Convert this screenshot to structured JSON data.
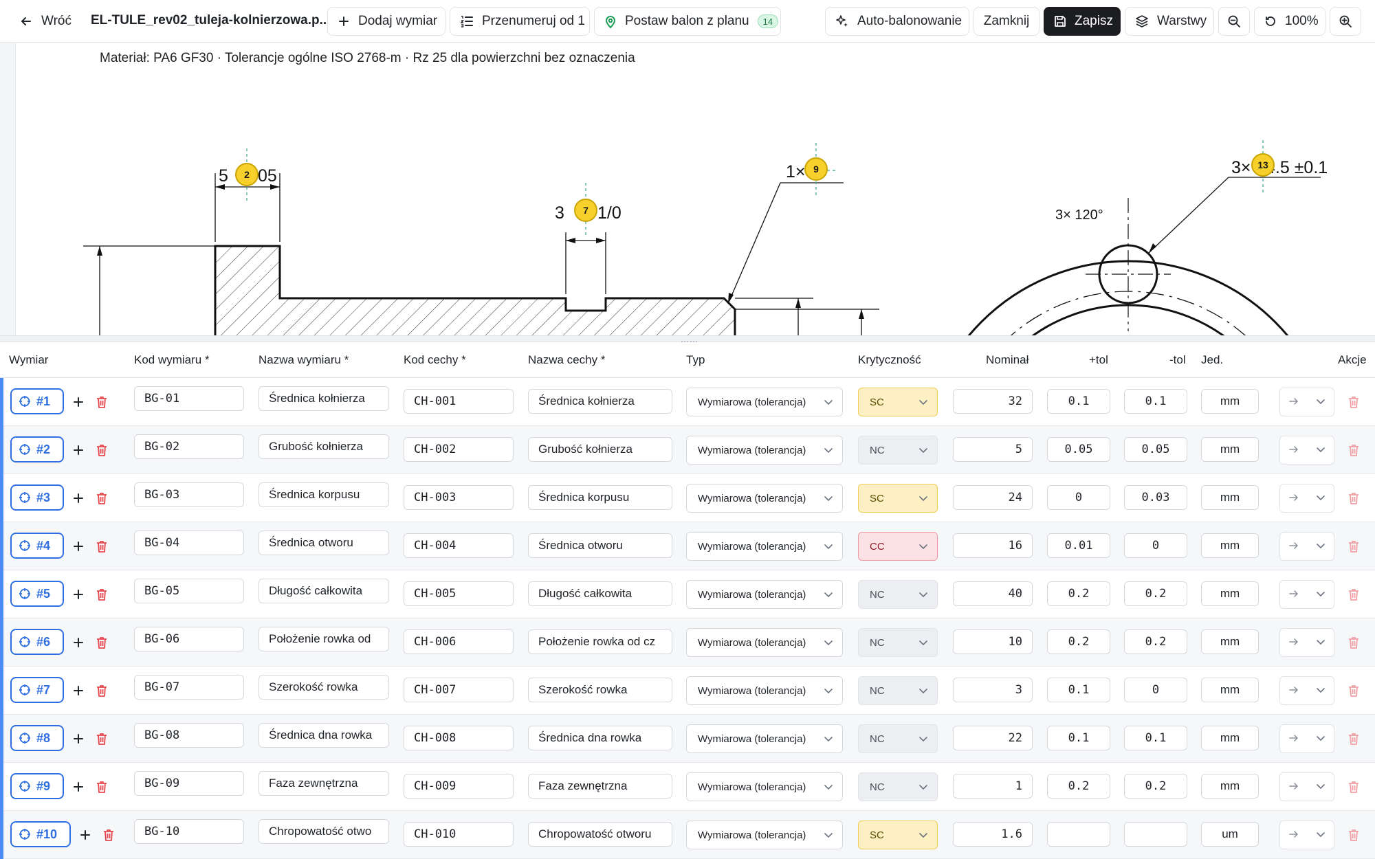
{
  "toolbar": {
    "back_label": "Wróć",
    "file_title": "EL-TULE_rev02_tuleja-kolnierzowa.p...",
    "add_dimension_label": "Dodaj wymiar",
    "renumber_label": "Przenumeruj od 1",
    "place_balloon_label": "Postaw balon z planu",
    "place_balloon_count": "14",
    "auto_balloon_label": "Auto-balonowanie",
    "close_label": "Zamknij",
    "save_label": "Zapisz",
    "layers_label": "Warstwy",
    "zoom_level": "100%"
  },
  "drawing": {
    "note": "Materiał: PA6 GF30 · Tolerancje ogólne ISO 2768-m · Rz 25 dla powierzchni bez oznaczenia",
    "dimension_texts": {
      "d2_left": "5",
      "d2_right": "05",
      "d7_left": "3",
      "d7_right": "1/0",
      "d9_left": "1×",
      "d13_left": "3×",
      "d13_right": "4.5 ±0.1",
      "angle": "3× 120°"
    },
    "balloons": [
      "2",
      "7",
      "9",
      "13"
    ]
  },
  "table": {
    "headers": {
      "wymiar": "Wymiar",
      "kod_wymiaru": "Kod wymiaru *",
      "nazwa_wymiaru": "Nazwa wymiaru *",
      "kod_cechy": "Kod cechy *",
      "nazwa_cechy": "Nazwa cechy *",
      "typ": "Typ",
      "krytycznosc": "Krytyczność",
      "nominal": "Nominał",
      "plus_tol": "+tol",
      "minus_tol": "-tol",
      "jed": "Jed.",
      "akcje": "Akcje"
    },
    "rows": [
      {
        "id": "#1",
        "kod_wymiaru": "BG-01",
        "nazwa_wymiaru": "Średnica kołnierza",
        "kod_cechy": "CH-001",
        "nazwa_cechy": "Średnica kołnierza",
        "typ": "Wymiarowa (tolerancja)",
        "kryt": "SC",
        "nominal": "32",
        "plus_tol": "0.1",
        "minus_tol": "0.1",
        "jed": "mm"
      },
      {
        "id": "#2",
        "kod_wymiaru": "BG-02",
        "nazwa_wymiaru": "Grubość kołnierza",
        "kod_cechy": "CH-002",
        "nazwa_cechy": "Grubość kołnierza",
        "typ": "Wymiarowa (tolerancja)",
        "kryt": "NC",
        "nominal": "5",
        "plus_tol": "0.05",
        "minus_tol": "0.05",
        "jed": "mm"
      },
      {
        "id": "#3",
        "kod_wymiaru": "BG-03",
        "nazwa_wymiaru": "Średnica korpusu",
        "kod_cechy": "CH-003",
        "nazwa_cechy": "Średnica korpusu",
        "typ": "Wymiarowa (tolerancja)",
        "kryt": "SC",
        "nominal": "24",
        "plus_tol": "0",
        "minus_tol": "0.03",
        "jed": "mm"
      },
      {
        "id": "#4",
        "kod_wymiaru": "BG-04",
        "nazwa_wymiaru": "Średnica otworu",
        "kod_cechy": "CH-004",
        "nazwa_cechy": "Średnica otworu",
        "typ": "Wymiarowa (tolerancja)",
        "kryt": "CC",
        "nominal": "16",
        "plus_tol": "0.01",
        "minus_tol": "0",
        "jed": "mm"
      },
      {
        "id": "#5",
        "kod_wymiaru": "BG-05",
        "nazwa_wymiaru": "Długość całkowita",
        "kod_cechy": "CH-005",
        "nazwa_cechy": "Długość całkowita",
        "typ": "Wymiarowa (tolerancja)",
        "kryt": "NC",
        "nominal": "40",
        "plus_tol": "0.2",
        "minus_tol": "0.2",
        "jed": "mm"
      },
      {
        "id": "#6",
        "kod_wymiaru": "BG-06",
        "nazwa_wymiaru": "Położenie rowka od",
        "kod_cechy": "CH-006",
        "nazwa_cechy": "Położenie rowka od cz",
        "typ": "Wymiarowa (tolerancja)",
        "kryt": "NC",
        "nominal": "10",
        "plus_tol": "0.2",
        "minus_tol": "0.2",
        "jed": "mm"
      },
      {
        "id": "#7",
        "kod_wymiaru": "BG-07",
        "nazwa_wymiaru": "Szerokość rowka",
        "kod_cechy": "CH-007",
        "nazwa_cechy": "Szerokość rowka",
        "typ": "Wymiarowa (tolerancja)",
        "kryt": "NC",
        "nominal": "3",
        "plus_tol": "0.1",
        "minus_tol": "0",
        "jed": "mm"
      },
      {
        "id": "#8",
        "kod_wymiaru": "BG-08",
        "nazwa_wymiaru": "Średnica dna rowka",
        "kod_cechy": "CH-008",
        "nazwa_cechy": "Średnica dna rowka",
        "typ": "Wymiarowa (tolerancja)",
        "kryt": "NC",
        "nominal": "22",
        "plus_tol": "0.1",
        "minus_tol": "0.1",
        "jed": "mm"
      },
      {
        "id": "#9",
        "kod_wymiaru": "BG-09",
        "nazwa_wymiaru": "Faza zewnętrzna",
        "kod_cechy": "CH-009",
        "nazwa_cechy": "Faza zewnętrzna",
        "typ": "Wymiarowa (tolerancja)",
        "kryt": "NC",
        "nominal": "1",
        "plus_tol": "0.2",
        "minus_tol": "0.2",
        "jed": "mm"
      },
      {
        "id": "#10",
        "kod_wymiaru": "BG-10",
        "nazwa_wymiaru": "Chropowatość otwo",
        "kod_cechy": "CH-010",
        "nazwa_cechy": "Chropowatość otworu",
        "typ": "Wymiarowa (tolerancja)",
        "kryt": "SC",
        "nominal": "1.6",
        "plus_tol": "",
        "minus_tol": "",
        "jed": "um"
      }
    ],
    "colors": {
      "accent": "#2f6fe0",
      "sc": "#fdf1c4",
      "nc": "#eceef1",
      "cc": "#fbe1e3",
      "delete": "#e5484d"
    }
  }
}
